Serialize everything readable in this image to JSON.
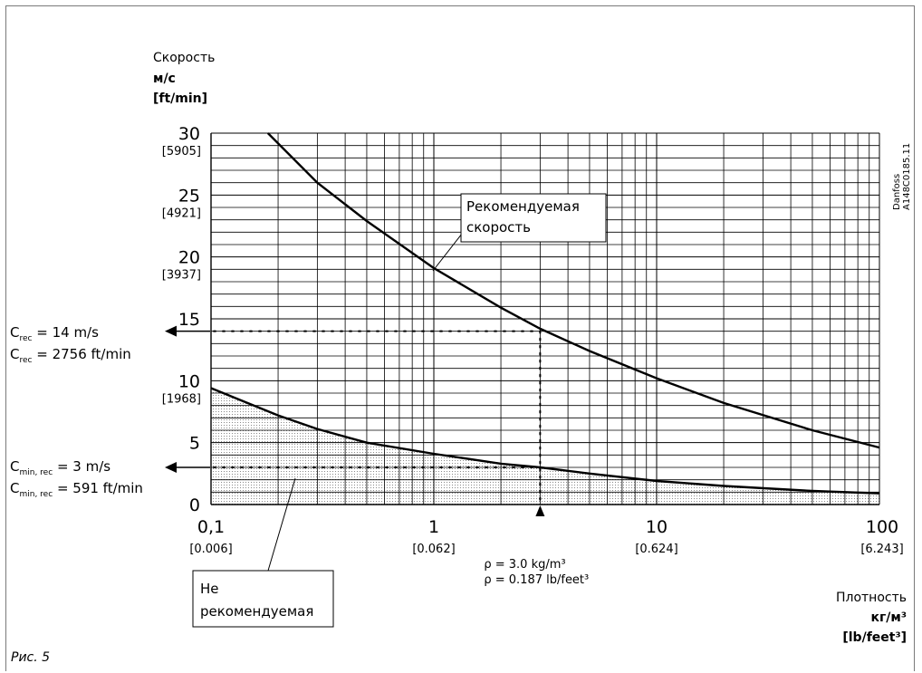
{
  "chart_data": {
    "type": "line",
    "x_scale": "log",
    "xlim": [
      0.1,
      100
    ],
    "ylim": [
      0,
      30
    ],
    "y_axis": {
      "title": "Скорость",
      "unit": "м/с",
      "unit_alt": "[ft/min]",
      "ticks": [
        {
          "value": 0,
          "label": "0",
          "sub": ""
        },
        {
          "value": 5,
          "label": "5",
          "sub": ""
        },
        {
          "value": 10,
          "label": "10",
          "sub": "[1968]"
        },
        {
          "value": 15,
          "label": "15",
          "sub": ""
        },
        {
          "value": 20,
          "label": "20",
          "sub": "[3937]"
        },
        {
          "value": 25,
          "label": "25",
          "sub": "[4921]"
        },
        {
          "value": 30,
          "label": "30",
          "sub": "[5905]"
        }
      ]
    },
    "x_axis": {
      "title": "Плотность",
      "unit": "кг/м³",
      "unit_alt": "[lb/feet³]",
      "ticks": [
        {
          "value": 0.1,
          "label": "0,1",
          "sub": "[0.006]"
        },
        {
          "value": 1,
          "label": "1",
          "sub": "[0.062]"
        },
        {
          "value": 10,
          "label": "10",
          "sub": "[0.624]"
        },
        {
          "value": 100,
          "label": "100",
          "sub": "[6.243]"
        }
      ]
    },
    "grid": true,
    "series": [
      {
        "name": "Рекомендуемая скорость",
        "x": [
          0.18,
          0.3,
          0.5,
          1,
          2,
          3,
          5,
          10,
          20,
          50,
          100
        ],
        "y": [
          30,
          26.0,
          22.9,
          19.1,
          15.9,
          14.2,
          12.4,
          10.2,
          8.2,
          6.0,
          4.6
        ]
      },
      {
        "name": "Не рекомендуемая",
        "fill": "below",
        "x": [
          0.1,
          0.2,
          0.3,
          0.5,
          1,
          2,
          3,
          5,
          10,
          20,
          50,
          100
        ],
        "y": [
          9.4,
          7.2,
          6.1,
          5.0,
          4.1,
          3.3,
          3.0,
          2.5,
          1.9,
          1.5,
          1.1,
          0.9
        ]
      }
    ],
    "annotations": {
      "example_density": {
        "x": 3.0,
        "label1": "ρ = 3.0 kg/m³",
        "label2": "ρ = 0.187 lb/feet³"
      },
      "c_rec": {
        "y": 14,
        "line1_pre": "C",
        "line1_sub": "rec",
        "line1_post": " = 14 m/s",
        "line2_pre": "C",
        "line2_sub": "rec",
        "line2_post": " = 2756 ft/min"
      },
      "c_min": {
        "y": 3,
        "line1_pre": "C",
        "line1_sub": "min, rec",
        "line1_post": " = 3 m/s",
        "line2_pre": "C",
        "line2_sub": "min, rec",
        "line2_post": " = 591 ft/min"
      },
      "rec_box": {
        "line1": "Рекомендуемая",
        "line2": "скорость"
      },
      "notrec_box": {
        "line1": "Не",
        "line2": "рекомендуемая"
      }
    }
  },
  "side_label": {
    "line1": "Danfoss",
    "line2": "A148C0185.11"
  },
  "figure_caption": "Рис. 5"
}
